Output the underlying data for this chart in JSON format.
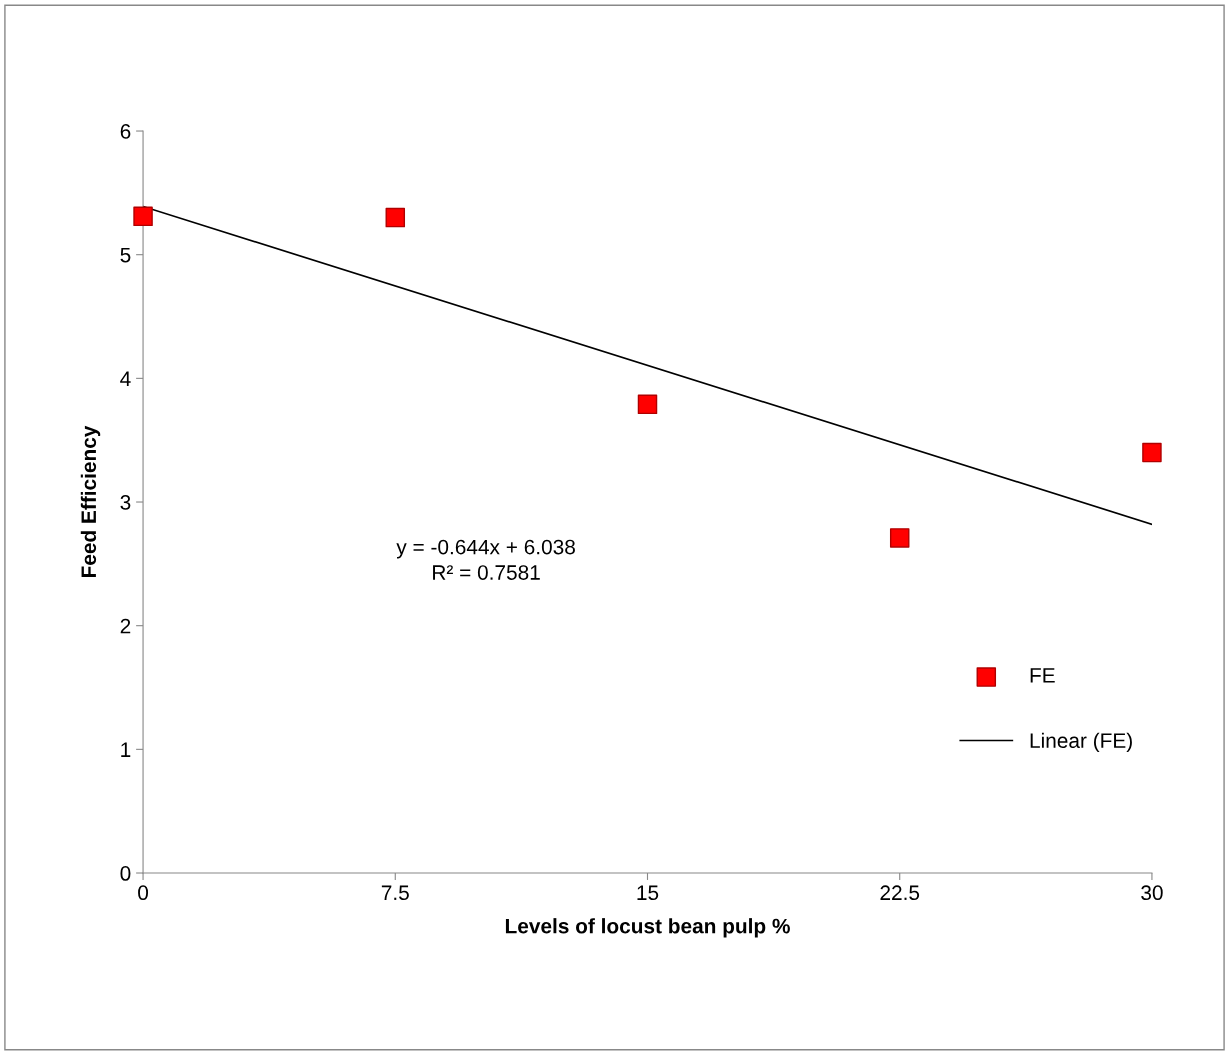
{
  "chart_data": {
    "type": "scatter",
    "xlabel": "Levels of locust bean pulp %",
    "ylabel": "Feed Efficiency",
    "series": [
      {
        "name": "FE",
        "color": "#ff0000",
        "marker": "square",
        "x": [
          0,
          7.5,
          15,
          22.5,
          30
        ],
        "values": [
          5.31,
          5.3,
          3.79,
          2.71,
          3.4
        ]
      },
      {
        "name": "Linear (FE)",
        "type": "line",
        "color": "#000000",
        "marker": "none",
        "line_style": "solid",
        "x": [
          0,
          30
        ],
        "values": [
          5.39,
          2.82
        ]
      }
    ],
    "annotations": [
      "y = -0.644x + 6.038\nR² = 0.7581"
    ],
    "xlim": [
      0,
      30
    ],
    "xticks": [
      0,
      7.5,
      15,
      22.5,
      30
    ],
    "ylim": [
      0,
      6
    ],
    "yticks": [
      0,
      1,
      2,
      3,
      4,
      5,
      6
    ],
    "grid": false,
    "legend": "right"
  }
}
